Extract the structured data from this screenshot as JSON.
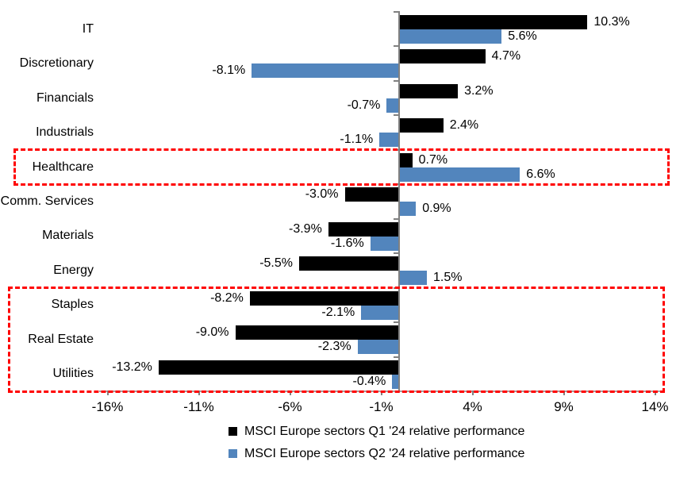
{
  "chart_data": {
    "type": "bar",
    "orientation": "horizontal",
    "title": "",
    "categories": [
      "IT",
      "Discretionary",
      "Financials",
      "Industrials",
      "Healthcare",
      "Comm. Services",
      "Materials",
      "Energy",
      "Staples",
      "Real Estate",
      "Utilities"
    ],
    "series": [
      {
        "name": "MSCI Europe sectors Q1 '24 relative performance",
        "color": "#000000",
        "values": [
          10.3,
          4.7,
          3.2,
          2.4,
          0.7,
          -3.0,
          -3.9,
          -5.5,
          -8.2,
          -9.0,
          -13.2
        ]
      },
      {
        "name": "MSCI Europe sectors Q2 '24 relative performance",
        "color": "#5285BD",
        "values": [
          5.6,
          -8.1,
          -0.7,
          -1.1,
          6.6,
          0.9,
          -1.6,
          1.5,
          -2.1,
          -2.3,
          -0.4
        ]
      }
    ],
    "value_label_format": "one-decimal-percent",
    "x_axis": {
      "tick_labels": [
        "-16%",
        "-11%",
        "-6%",
        "-1%",
        "4%",
        "9%",
        "14%"
      ],
      "tick_values": [
        -16,
        -11,
        -6,
        -1,
        4,
        9,
        14
      ],
      "min": -16.5,
      "max": 14.5
    },
    "highlights": [
      {
        "from": "Healthcare",
        "to": "Healthcare",
        "color": "#FF0000"
      },
      {
        "from": "Staples",
        "to": "Utilities",
        "color": "#FF0000"
      }
    ],
    "legend": {
      "position": "bottom",
      "entries": [
        "MSCI Europe sectors Q1 '24 relative performance",
        "MSCI Europe sectors Q2 '24 relative performance"
      ]
    },
    "axis_color": "#808080",
    "grid": false
  }
}
